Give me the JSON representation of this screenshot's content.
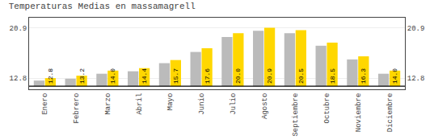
{
  "chart_data": {
    "type": "bar",
    "title": "Temperaturas Medias en massamagrell",
    "categories": [
      "Enero",
      "Febrero",
      "Marzo",
      "Abril",
      "Mayo",
      "Junio",
      "Julio",
      "Agosto",
      "Septiembre",
      "Octubre",
      "Noviembre",
      "Diciembre"
    ],
    "series": [
      {
        "color": "#BBBBBB",
        "values": [
          12.4,
          12.7,
          13.5,
          13.9,
          15.2,
          17.0,
          19.4,
          20.4,
          20.0,
          18.0,
          15.8,
          13.5
        ]
      },
      {
        "color": "#FFD700",
        "values": [
          12.8,
          13.2,
          14.0,
          14.4,
          15.7,
          17.6,
          20.0,
          20.9,
          20.5,
          18.5,
          16.3,
          14.0
        ],
        "data_labels": true,
        "value_labels": [
          "12.8",
          "13.2",
          "14.0",
          "14.4",
          "15.7",
          "17.6",
          "20.0",
          "20.9",
          "20.5",
          "18.5",
          "16.3",
          "14.0"
        ]
      }
    ],
    "baseline": 11.5,
    "ylim": [
      11.0,
      22.5
    ],
    "yticks": [
      12.8,
      20.9
    ],
    "grid": true
  }
}
